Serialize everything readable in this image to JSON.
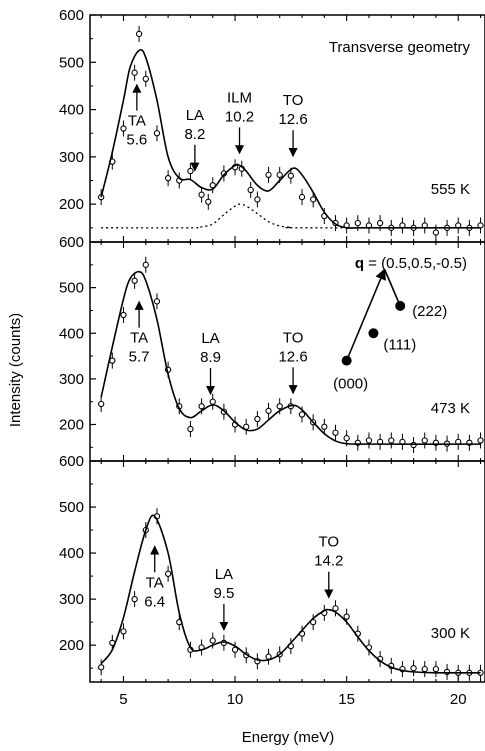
{
  "figure": {
    "xlabel": "Energy (meV)",
    "ylabel": "Intensity (counts)"
  },
  "chart_data": [
    {
      "type": "scatter",
      "panel": "top",
      "title": "Transverse geometry",
      "temperature_label": "555 K",
      "xlim": [
        3.5,
        21.2
      ],
      "ylim": [
        120,
        600
      ],
      "y_ticks": [
        200,
        300,
        400,
        500,
        600
      ],
      "x_ticks": [
        5,
        10,
        15,
        20
      ],
      "series": [
        {
          "role": "data",
          "x": [
            4.0,
            4.5,
            5.0,
            5.5,
            5.7,
            6.0,
            6.5,
            7.0,
            7.5,
            8.0,
            8.5,
            8.8,
            9.0,
            9.5,
            10.0,
            10.3,
            10.7,
            11.0,
            11.5,
            12.0,
            12.5,
            13.0,
            13.5,
            14.0,
            14.5,
            15.0,
            15.5,
            16.0,
            16.5,
            17.0,
            17.5,
            18.0,
            18.5,
            19.0,
            19.5,
            20.0,
            20.5,
            21.0
          ],
          "y": [
            215,
            290,
            360,
            478,
            560,
            465,
            350,
            255,
            250,
            270,
            220,
            205,
            240,
            265,
            278,
            275,
            230,
            210,
            262,
            262,
            260,
            215,
            210,
            175,
            160,
            155,
            160,
            155,
            160,
            150,
            155,
            150,
            155,
            140,
            150,
            155,
            150,
            155
          ]
        },
        {
          "role": "fit",
          "x": [
            4.0,
            4.5,
            5.0,
            5.3,
            5.7,
            6.0,
            6.5,
            7.0,
            7.5,
            8.0,
            8.5,
            9.0,
            9.5,
            10.0,
            10.2,
            10.5,
            11.0,
            11.5,
            12.0,
            12.6,
            13.0,
            13.5,
            14.0,
            14.5,
            15.0,
            15.5,
            16.0,
            18.0,
            21.0
          ],
          "y": [
            215,
            310,
            420,
            490,
            525,
            510,
            420,
            300,
            255,
            252,
            235,
            232,
            262,
            282,
            282,
            270,
            240,
            228,
            250,
            276,
            262,
            225,
            183,
            158,
            150,
            150,
            150,
            150,
            150
          ]
        },
        {
          "role": "ilm-component",
          "x": [
            4.0,
            8.0,
            8.5,
            9.0,
            9.5,
            10.0,
            10.2,
            10.5,
            11.0,
            11.5,
            12.0,
            12.5,
            13.0,
            21.0
          ],
          "y": [
            150,
            150,
            152,
            158,
            178,
            196,
            200,
            196,
            180,
            163,
            154,
            151,
            150,
            150
          ]
        }
      ],
      "annotations": [
        {
          "label": "TA",
          "value": "5.6",
          "x": 5.6,
          "direction": "up"
        },
        {
          "label": "LA",
          "value": "8.2",
          "x": 8.2,
          "direction": "down"
        },
        {
          "label": "ILM",
          "value": "10.2",
          "x": 10.2,
          "direction": "down"
        },
        {
          "label": "TO",
          "value": "12.6",
          "x": 12.6,
          "direction": "down"
        }
      ]
    },
    {
      "type": "scatter",
      "panel": "middle",
      "temperature_label": "473 K",
      "xlim": [
        3.5,
        21.2
      ],
      "ylim": [
        120,
        600
      ],
      "y_ticks": [
        200,
        300,
        400,
        500,
        600
      ],
      "x_ticks": [
        5,
        10,
        15,
        20
      ],
      "series": [
        {
          "role": "data",
          "x": [
            4.0,
            4.5,
            5.0,
            5.5,
            6.0,
            6.5,
            7.0,
            7.5,
            8.0,
            8.5,
            9.0,
            9.5,
            10.0,
            10.5,
            11.0,
            11.5,
            12.0,
            12.5,
            13.0,
            13.5,
            14.0,
            14.5,
            15.0,
            15.5,
            16.0,
            16.5,
            17.0,
            17.5,
            18.0,
            18.5,
            19.0,
            19.5,
            20.0,
            20.5,
            21.0
          ],
          "y": [
            245,
            340,
            440,
            515,
            550,
            470,
            320,
            240,
            190,
            240,
            250,
            228,
            200,
            195,
            212,
            230,
            240,
            240,
            222,
            205,
            195,
            182,
            170,
            160,
            165,
            162,
            165,
            162,
            155,
            165,
            160,
            158,
            162,
            160,
            165
          ]
        },
        {
          "role": "fit",
          "x": [
            4.0,
            4.5,
            5.0,
            5.3,
            5.7,
            6.0,
            6.5,
            7.0,
            7.5,
            8.0,
            8.5,
            9.0,
            9.5,
            10.0,
            10.5,
            11.0,
            11.5,
            12.0,
            12.6,
            13.0,
            13.5,
            14.0,
            14.5,
            15.0,
            16.0,
            21.0
          ],
          "y": [
            260,
            370,
            475,
            520,
            535,
            515,
            430,
            310,
            235,
            215,
            230,
            243,
            230,
            205,
            188,
            190,
            210,
            230,
            242,
            232,
            205,
            180,
            164,
            158,
            157,
            157
          ]
        }
      ],
      "annotations": [
        {
          "label": "TA",
          "value": "5.7",
          "x": 5.7,
          "direction": "up"
        },
        {
          "label": "LA",
          "value": "8.9",
          "x": 8.9,
          "direction": "down"
        },
        {
          "label": "TO",
          "value": "12.6",
          "x": 12.6,
          "direction": "down"
        }
      ],
      "inset": {
        "q_prefix": "q",
        "q_text": " = (0.5,0.5,-0.5)",
        "points": [
          {
            "label": "(000)",
            "x": 15.0,
            "y": 340
          },
          {
            "label": "(111)",
            "x": 16.2,
            "y": 400
          },
          {
            "label": "(222)",
            "x": 17.4,
            "y": 460
          }
        ],
        "arrow_tip": {
          "x": 16.7,
          "y": 540
        }
      }
    },
    {
      "type": "scatter",
      "panel": "bottom",
      "temperature_label": "300 K",
      "xlim": [
        3.5,
        21.2
      ],
      "ylim": [
        120,
        600
      ],
      "y_ticks": [
        200,
        300,
        400,
        500,
        600
      ],
      "x_ticks": [
        5,
        10,
        15,
        20
      ],
      "series": [
        {
          "role": "data",
          "x": [
            4.0,
            4.5,
            5.0,
            5.5,
            6.0,
            6.5,
            7.0,
            7.5,
            8.0,
            8.5,
            9.0,
            9.5,
            10.0,
            10.5,
            11.0,
            11.5,
            12.0,
            12.5,
            13.0,
            13.5,
            14.0,
            14.5,
            15.0,
            15.5,
            16.0,
            16.5,
            17.0,
            17.5,
            18.0,
            18.5,
            19.0,
            19.5,
            20.0,
            20.5,
            21.0
          ],
          "y": [
            152,
            205,
            230,
            300,
            450,
            480,
            355,
            250,
            190,
            195,
            210,
            205,
            190,
            178,
            165,
            175,
            180,
            198,
            225,
            250,
            270,
            280,
            262,
            225,
            195,
            170,
            155,
            148,
            150,
            148,
            148,
            142,
            140,
            140,
            140
          ]
        },
        {
          "role": "fit",
          "x": [
            4.0,
            4.5,
            5.0,
            5.5,
            6.0,
            6.4,
            7.0,
            7.5,
            8.0,
            8.5,
            9.0,
            9.5,
            10.0,
            10.5,
            11.0,
            11.5,
            12.0,
            12.5,
            13.0,
            13.5,
            14.0,
            14.2,
            14.5,
            15.0,
            15.5,
            16.0,
            16.5,
            17.0,
            17.5,
            18.0,
            19.0,
            21.0
          ],
          "y": [
            160,
            190,
            260,
            360,
            450,
            480,
            400,
            270,
            195,
            190,
            200,
            207,
            198,
            180,
            168,
            168,
            180,
            205,
            232,
            258,
            275,
            277,
            272,
            250,
            218,
            188,
            166,
            152,
            145,
            142,
            140,
            140
          ]
        }
      ],
      "annotations": [
        {
          "label": "TA",
          "value": "6.4",
          "x": 6.4,
          "direction": "up"
        },
        {
          "label": "LA",
          "value": "9.5",
          "x": 9.5,
          "direction": "down"
        },
        {
          "label": "TO",
          "value": "14.2",
          "x": 14.2,
          "direction": "down"
        }
      ]
    }
  ]
}
